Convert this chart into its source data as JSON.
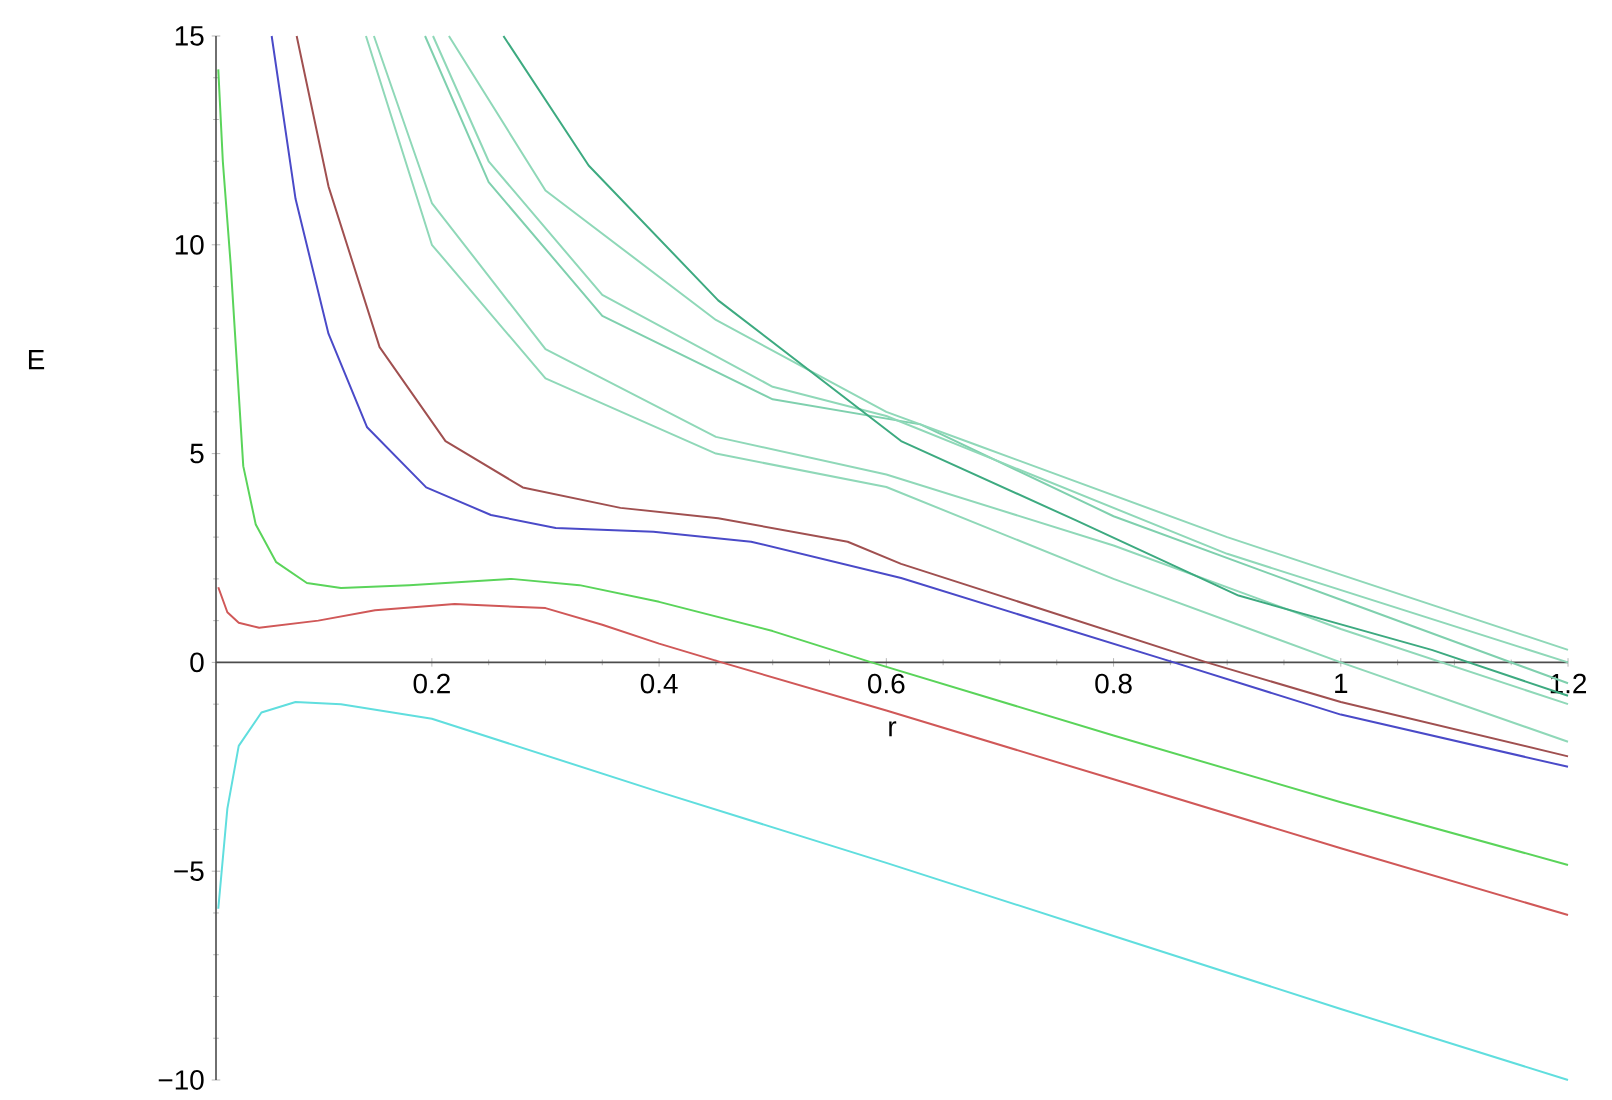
{
  "chart_data": {
    "type": "line",
    "xlabel": "r",
    "ylabel": "E",
    "xlim": [
      0.01,
      1.2
    ],
    "ylim": [
      -10,
      15
    ],
    "xticks": [
      0.2,
      0.4,
      0.6,
      0.8,
      1,
      1.2
    ],
    "yticks": [
      {
        "value": -10,
        "label": "−10"
      },
      {
        "value": -5,
        "label": "−5"
      },
      0,
      5,
      10,
      15
    ],
    "grid": false,
    "marker": "none",
    "line_style": "solid",
    "series": [
      {
        "color": "#60dede",
        "x": [
          0.012,
          0.02,
          0.03,
          0.05,
          0.08,
          0.12,
          0.2,
          0.4,
          0.6,
          0.8,
          1.0,
          1.2
        ],
        "values": [
          -5.9,
          -3.5,
          -2.0,
          -1.2,
          -0.95,
          -1.0,
          -1.35,
          -3.1,
          -4.8,
          -6.55,
          -8.3,
          -10.0
        ]
      },
      {
        "color": "#d05858",
        "x": [
          0.012,
          0.02,
          0.03,
          0.048,
          0.1,
          0.15,
          0.22,
          0.3,
          0.35,
          0.4,
          0.455,
          0.6,
          0.8,
          1.0,
          1.2
        ],
        "values": [
          1.8,
          1.2,
          0.95,
          0.83,
          1.0,
          1.25,
          1.4,
          1.3,
          0.9,
          0.45,
          0,
          -1.15,
          -2.8,
          -4.45,
          -6.05
        ]
      },
      {
        "color": "#5ad45a",
        "x": [
          0.012,
          0.016,
          0.023,
          0.034,
          0.045,
          0.063,
          0.09,
          0.12,
          0.18,
          0.27,
          0.33,
          0.4,
          0.5,
          0.587,
          0.8,
          1.0,
          1.2
        ],
        "values": [
          14.2,
          12,
          9.5,
          4.7,
          3.3,
          2.4,
          1.9,
          1.78,
          1.85,
          2.0,
          1.85,
          1.45,
          0.75,
          0,
          -1.75,
          -3.35,
          -4.85
        ]
      },
      {
        "color": "#4a4ac8",
        "x": [
          0.059,
          0.08,
          0.109,
          0.143,
          0.195,
          0.252,
          0.309,
          0.395,
          0.481,
          0.613,
          0.853,
          1.0,
          1.2
        ],
        "values": [
          15,
          11.1,
          7.87,
          5.63,
          4.19,
          3.53,
          3.22,
          3.13,
          2.89,
          2.02,
          0,
          -1.25,
          -2.5
        ]
      },
      {
        "color": "#a05050",
        "x": [
          0.081,
          0.109,
          0.154,
          0.212,
          0.28,
          0.366,
          0.452,
          0.566,
          0.613,
          0.882,
          1.0,
          1.2
        ],
        "values": [
          15,
          11.4,
          7.55,
          5.3,
          4.19,
          3.7,
          3.45,
          2.89,
          2.36,
          0,
          -0.95,
          -2.25
        ]
      },
      {
        "color": "#8fd8b8",
        "x": [
          0.142,
          0.2,
          0.3,
          0.45,
          0.6,
          0.8,
          1.0,
          1.2
        ],
        "values": [
          15,
          10,
          6.8,
          5.0,
          4.2,
          2.0,
          0,
          -1.9
        ]
      },
      {
        "color": "#8fd8b8",
        "x": [
          0.149,
          0.2,
          0.3,
          0.45,
          0.6,
          0.8,
          1.0,
          1.2
        ],
        "values": [
          15,
          11,
          7.5,
          5.4,
          4.5,
          2.8,
          0.8,
          -1.0
        ]
      },
      {
        "color": "#7fd0ae",
        "x": [
          0.194,
          0.25,
          0.35,
          0.5,
          0.63,
          0.8,
          1.0,
          1.2
        ],
        "values": [
          15,
          11.5,
          8.3,
          6.3,
          5.7,
          3.5,
          1.5,
          -0.5
        ]
      },
      {
        "color": "#8fd8b8",
        "x": [
          0.201,
          0.25,
          0.35,
          0.5,
          0.6,
          0.7,
          0.9,
          1.2
        ],
        "values": [
          15,
          12,
          8.8,
          6.6,
          5.9,
          4.8,
          2.6,
          0
        ]
      },
      {
        "color": "#8fd8b8",
        "x": [
          0.215,
          0.3,
          0.45,
          0.6,
          0.68,
          0.9,
          1.2
        ],
        "values": [
          15,
          11.3,
          8.2,
          6.0,
          5.2,
          3.0,
          0.3
        ]
      },
      {
        "color": "#3daa80",
        "x": [
          0.263,
          0.338,
          0.452,
          0.613,
          0.767,
          0.91,
          1.08,
          1.2
        ],
        "values": [
          15,
          11.9,
          8.67,
          5.3,
          3.4,
          1.6,
          0.3,
          -0.8
        ]
      }
    ]
  }
}
